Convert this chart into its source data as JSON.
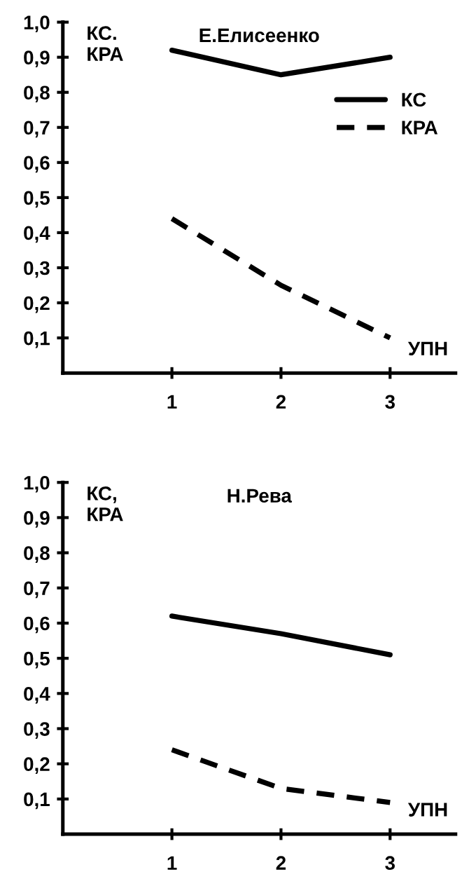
{
  "chart_data": [
    {
      "type": "line",
      "title": "Е.Елисеенко",
      "ylabel": "КС.\nКРА",
      "xlabel": "УПН",
      "x": [
        1,
        2,
        3
      ],
      "xlim": [
        0,
        3.6
      ],
      "xticks": [
        {
          "value": 1,
          "label": "1"
        },
        {
          "value": 2,
          "label": "2"
        },
        {
          "value": 3,
          "label": "3"
        }
      ],
      "ylim": [
        0,
        1
      ],
      "yticks": [
        {
          "value": 0.1,
          "label": "0,1"
        },
        {
          "value": 0.2,
          "label": "0,2"
        },
        {
          "value": 0.3,
          "label": "0,3"
        },
        {
          "value": 0.4,
          "label": "0,4"
        },
        {
          "value": 0.5,
          "label": "0,5"
        },
        {
          "value": 0.6,
          "label": "0,6"
        },
        {
          "value": 0.7,
          "label": "0,7"
        },
        {
          "value": 0.8,
          "label": "0,8"
        },
        {
          "value": 0.9,
          "label": "0,9"
        },
        {
          "value": 1.0,
          "label": "1,0"
        }
      ],
      "grid": false,
      "legend": "top right",
      "marker": "none",
      "series": [
        {
          "name": "КС",
          "color": "#000000",
          "line_style": "solid",
          "values": [
            0.92,
            0.85,
            0.9
          ]
        },
        {
          "name": "КРА",
          "color": "#000000",
          "line_style": "dashed",
          "values": [
            0.44,
            0.25,
            0.1
          ]
        }
      ]
    },
    {
      "type": "line",
      "title": "Н.Рева",
      "ylabel": "КС,\nКРА",
      "xlabel": "УПН",
      "x": [
        1,
        2,
        3
      ],
      "xlim": [
        0,
        3.6
      ],
      "xticks": [
        {
          "value": 1,
          "label": "1"
        },
        {
          "value": 2,
          "label": "2"
        },
        {
          "value": 3,
          "label": "3"
        }
      ],
      "ylim": [
        0,
        1
      ],
      "yticks": [
        {
          "value": 0.1,
          "label": "0,1"
        },
        {
          "value": 0.2,
          "label": "0,2"
        },
        {
          "value": 0.3,
          "label": "0,3"
        },
        {
          "value": 0.4,
          "label": "0,4"
        },
        {
          "value": 0.5,
          "label": "0,5"
        },
        {
          "value": 0.6,
          "label": "0,6"
        },
        {
          "value": 0.7,
          "label": "0,7"
        },
        {
          "value": 0.8,
          "label": "0,8"
        },
        {
          "value": 0.9,
          "label": "0,9"
        },
        {
          "value": 1.0,
          "label": "1,0"
        }
      ],
      "grid": false,
      "legend": false,
      "marker": "none",
      "series": [
        {
          "color": "#000000",
          "line_style": "solid",
          "values": [
            0.62,
            0.57,
            0.51
          ]
        },
        {
          "color": "#000000",
          "line_style": "dashed",
          "values": [
            0.24,
            0.13,
            0.09
          ]
        }
      ]
    }
  ]
}
